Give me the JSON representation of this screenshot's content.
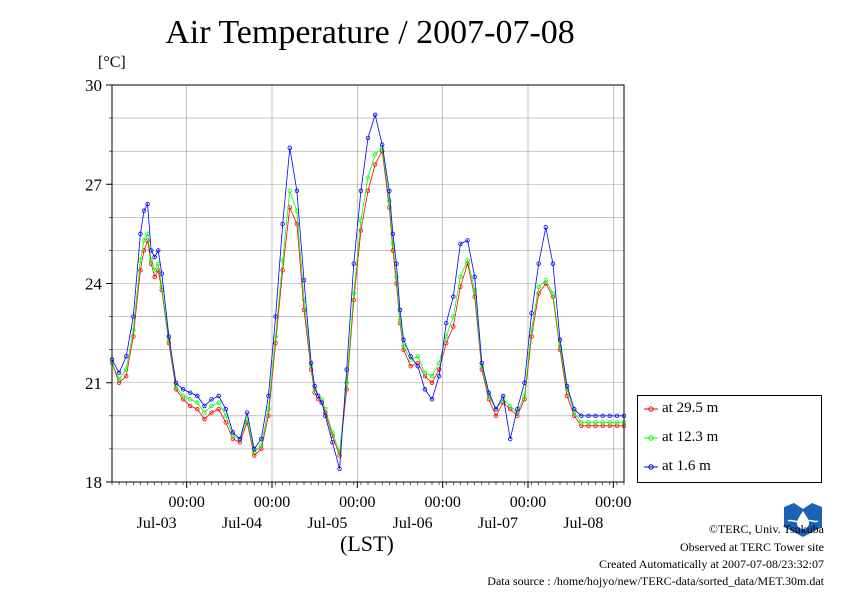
{
  "chart_data": {
    "type": "line",
    "title": "Air Temperature / 2007-07-08",
    "ylabel": "[°C]",
    "xlabel": "(LST)",
    "ylim": [
      18,
      30
    ],
    "yticks": [
      18,
      21,
      24,
      27,
      30
    ],
    "xlim": [
      0,
      144
    ],
    "xticks": [
      {
        "x": 21,
        "time": "00:00",
        "date": "Jul-03"
      },
      {
        "x": 45,
        "time": "00:00",
        "date": "Jul-04"
      },
      {
        "x": 69,
        "time": "00:00",
        "date": "Jul-05"
      },
      {
        "x": 93,
        "time": "00:00",
        "date": "Jul-06"
      },
      {
        "x": 117,
        "time": "00:00",
        "date": "Jul-07"
      },
      {
        "x": 141,
        "time": "00:00",
        "date": "Jul-08"
      }
    ],
    "grid": true,
    "legend_position": "right",
    "series": [
      {
        "name": "at 29.5 m",
        "color": "#ff0000",
        "x": [
          0,
          2,
          4,
          6,
          8,
          9,
          10,
          11,
          12,
          13,
          14,
          16,
          18,
          20,
          22,
          24,
          26,
          28,
          30,
          32,
          34,
          36,
          38,
          40,
          42,
          44,
          46,
          48,
          50,
          52,
          54,
          56,
          57,
          58,
          59,
          60,
          62,
          64,
          66,
          68,
          70,
          72,
          74,
          76,
          78,
          79,
          80,
          81,
          82,
          84,
          86,
          88,
          90,
          92,
          94,
          96,
          98,
          100,
          102,
          104,
          106,
          108,
          110,
          112,
          114,
          116,
          118,
          120,
          122,
          124,
          126,
          128,
          130,
          132,
          134,
          136,
          138,
          140,
          142,
          144
        ],
        "values": [
          21.6,
          21.0,
          21.2,
          22.4,
          24.4,
          25.0,
          25.3,
          24.6,
          24.2,
          24.4,
          23.8,
          22.2,
          20.8,
          20.5,
          20.3,
          20.2,
          19.9,
          20.1,
          20.2,
          19.8,
          19.3,
          19.2,
          19.8,
          18.8,
          19.0,
          20.0,
          22.2,
          24.4,
          26.3,
          25.8,
          23.2,
          21.4,
          20.7,
          20.5,
          20.4,
          20.1,
          19.4,
          18.8,
          20.8,
          23.5,
          25.6,
          26.8,
          27.6,
          28.0,
          26.3,
          25.0,
          24.0,
          22.8,
          22.0,
          21.5,
          21.6,
          21.2,
          21.0,
          21.4,
          22.2,
          22.7,
          23.9,
          24.6,
          23.6,
          21.4,
          20.5,
          20.0,
          20.4,
          20.2,
          20.0,
          20.5,
          22.4,
          23.7,
          24.0,
          23.6,
          22.0,
          20.6,
          20.0,
          19.7,
          19.7,
          19.7,
          19.7,
          19.7,
          19.7,
          19.7
        ]
      },
      {
        "name": "at 12.3 m",
        "color": "#00ff00",
        "x": [
          0,
          2,
          4,
          6,
          8,
          9,
          10,
          11,
          12,
          13,
          14,
          16,
          18,
          20,
          22,
          24,
          26,
          28,
          30,
          32,
          34,
          36,
          38,
          40,
          42,
          44,
          46,
          48,
          50,
          52,
          54,
          56,
          57,
          58,
          59,
          60,
          62,
          64,
          66,
          68,
          70,
          72,
          74,
          76,
          78,
          79,
          80,
          81,
          82,
          84,
          86,
          88,
          90,
          92,
          94,
          96,
          98,
          100,
          102,
          104,
          106,
          108,
          110,
          112,
          114,
          116,
          118,
          120,
          122,
          124,
          126,
          128,
          130,
          132,
          134,
          136,
          138,
          140,
          142,
          144
        ],
        "values": [
          21.6,
          21.1,
          21.4,
          22.6,
          24.7,
          25.3,
          25.5,
          24.7,
          24.4,
          24.6,
          23.9,
          22.3,
          20.9,
          20.6,
          20.5,
          20.4,
          20.1,
          20.3,
          20.4,
          20.0,
          19.4,
          19.3,
          19.9,
          18.9,
          19.1,
          20.2,
          22.4,
          24.7,
          26.8,
          26.2,
          23.5,
          21.5,
          20.8,
          20.6,
          20.5,
          20.2,
          19.5,
          18.9,
          21.0,
          23.7,
          25.9,
          27.2,
          27.9,
          28.1,
          26.5,
          25.2,
          24.2,
          22.9,
          22.1,
          21.7,
          21.8,
          21.3,
          21.2,
          21.6,
          22.4,
          23.0,
          24.2,
          24.7,
          23.8,
          21.5,
          20.6,
          20.2,
          20.5,
          20.3,
          20.1,
          20.6,
          22.6,
          23.9,
          24.1,
          23.7,
          22.1,
          20.8,
          20.1,
          19.8,
          19.8,
          19.8,
          19.8,
          19.8,
          19.8,
          19.8
        ]
      },
      {
        "name": "at 1.6 m",
        "color": "#0000ff",
        "x": [
          0,
          2,
          4,
          6,
          8,
          9,
          10,
          11,
          12,
          13,
          14,
          16,
          18,
          20,
          22,
          24,
          26,
          28,
          30,
          32,
          34,
          36,
          38,
          40,
          42,
          44,
          46,
          48,
          50,
          52,
          54,
          56,
          57,
          58,
          59,
          60,
          62,
          64,
          66,
          68,
          70,
          72,
          74,
          76,
          78,
          79,
          80,
          81,
          82,
          84,
          86,
          88,
          90,
          92,
          94,
          96,
          98,
          100,
          102,
          104,
          106,
          108,
          110,
          112,
          114,
          116,
          118,
          120,
          122,
          124,
          126,
          128,
          130,
          132,
          134,
          136,
          138,
          140,
          142,
          144
        ],
        "values": [
          21.7,
          21.3,
          21.8,
          23.0,
          25.5,
          26.2,
          26.4,
          25.0,
          24.8,
          25.0,
          24.3,
          22.4,
          21.0,
          20.8,
          20.7,
          20.6,
          20.3,
          20.5,
          20.6,
          20.2,
          19.5,
          19.3,
          20.1,
          19.0,
          19.3,
          20.6,
          23.0,
          25.8,
          28.1,
          26.8,
          24.1,
          21.6,
          20.9,
          20.6,
          20.4,
          20.0,
          19.2,
          18.4,
          21.4,
          24.6,
          26.8,
          28.4,
          29.1,
          28.2,
          26.8,
          25.5,
          24.6,
          23.2,
          22.3,
          21.8,
          21.5,
          20.8,
          20.5,
          21.2,
          22.8,
          23.6,
          25.2,
          25.3,
          24.2,
          21.6,
          20.7,
          20.2,
          20.6,
          19.3,
          20.2,
          21.0,
          23.1,
          24.6,
          25.7,
          24.6,
          22.3,
          20.9,
          20.2,
          20.0,
          20.0,
          20.0,
          20.0,
          20.0,
          20.0,
          20.0
        ]
      }
    ]
  },
  "footer": {
    "copyright": "©TERC, Univ. Tsukuba",
    "observed": "Observed at TERC Tower site",
    "created": "Created Automatically at 2007-07-08/23:32:07",
    "source": "Data source : /home/hojyo/new/TERC-data/sorted_data/MET.30m.dat",
    "logo_text": "TERC"
  }
}
